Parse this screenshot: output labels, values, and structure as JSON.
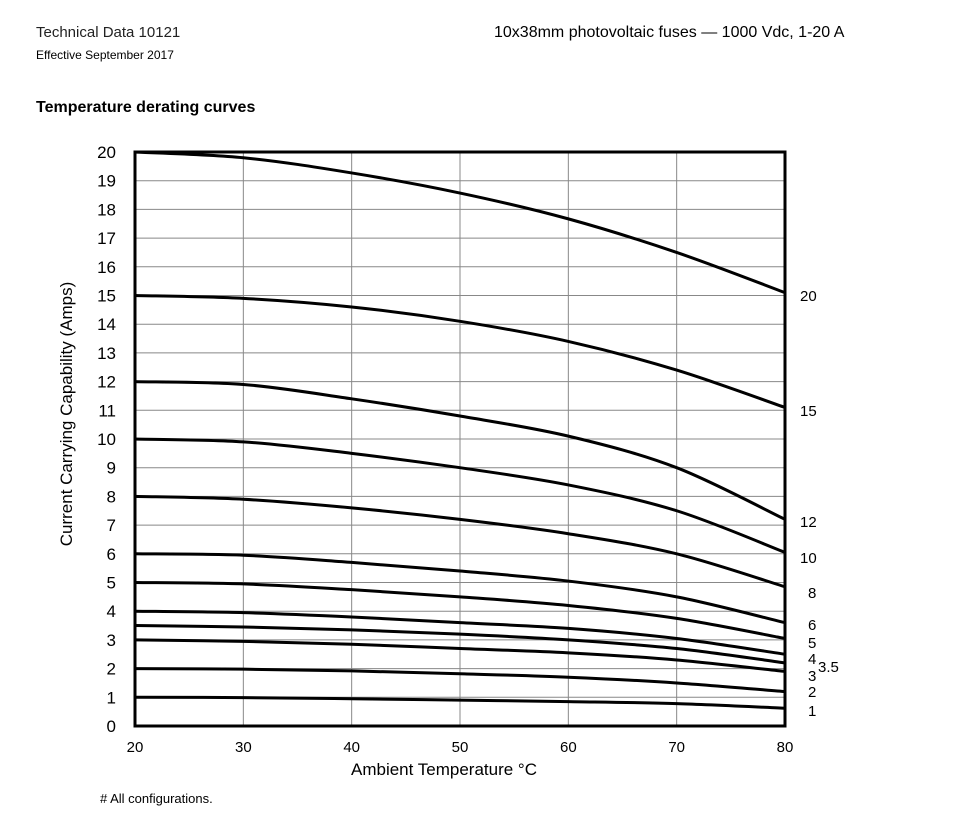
{
  "header": {
    "doc_title": "Technical Data 10121",
    "effective": "Effective September 2017",
    "product": "10x38mm photovoltaic fuses — 1000 Vdc, 1-20 A"
  },
  "section_title": "Temperature derating curves",
  "footnote": "# All configurations.",
  "chart_data": {
    "type": "line",
    "title": "",
    "xlabel": "Ambient Temperature °C",
    "ylabel": "Current Carrying Capability (Amps)",
    "xlim": [
      20,
      80
    ],
    "ylim": [
      0,
      20
    ],
    "xticks": [
      20,
      30,
      40,
      50,
      60,
      70,
      80
    ],
    "yticks": [
      0,
      1,
      2,
      3,
      4,
      5,
      6,
      7,
      8,
      9,
      10,
      11,
      12,
      13,
      14,
      15,
      16,
      17,
      18,
      19,
      20
    ],
    "grid": true,
    "x": [
      20,
      30,
      40,
      50,
      60,
      70,
      80
    ],
    "series": [
      {
        "name": "20",
        "values": [
          20,
          19.8,
          19.27,
          18.57,
          17.67,
          16.5,
          15.1
        ]
      },
      {
        "name": "15",
        "values": [
          15,
          14.9,
          14.6,
          14.1,
          13.4,
          12.4,
          11.1
        ]
      },
      {
        "name": "12",
        "values": [
          12,
          11.9,
          11.4,
          10.8,
          10.1,
          9.0,
          7.2
        ]
      },
      {
        "name": "10",
        "values": [
          10,
          9.9,
          9.5,
          9.0,
          8.4,
          7.5,
          6.05
        ]
      },
      {
        "name": "8",
        "values": [
          8,
          7.9,
          7.6,
          7.2,
          6.7,
          6.0,
          4.85
        ]
      },
      {
        "name": "6",
        "values": [
          6,
          5.95,
          5.7,
          5.4,
          5.05,
          4.5,
          3.6
        ]
      },
      {
        "name": "5",
        "values": [
          5,
          4.95,
          4.75,
          4.5,
          4.2,
          3.75,
          3.05
        ]
      },
      {
        "name": "4",
        "values": [
          4,
          3.95,
          3.8,
          3.6,
          3.4,
          3.05,
          2.5
        ]
      },
      {
        "name": "3.5",
        "values": [
          3.5,
          3.45,
          3.35,
          3.2,
          3.0,
          2.7,
          2.2
        ]
      },
      {
        "name": "3",
        "values": [
          3,
          2.95,
          2.85,
          2.7,
          2.55,
          2.3,
          1.9
        ]
      },
      {
        "name": "2",
        "values": [
          2,
          1.98,
          1.92,
          1.82,
          1.7,
          1.5,
          1.2
        ]
      },
      {
        "name": "1",
        "values": [
          1,
          0.99,
          0.95,
          0.9,
          0.85,
          0.78,
          0.62
        ]
      }
    ],
    "line_color": "#000000",
    "grid_color": "#888888"
  }
}
